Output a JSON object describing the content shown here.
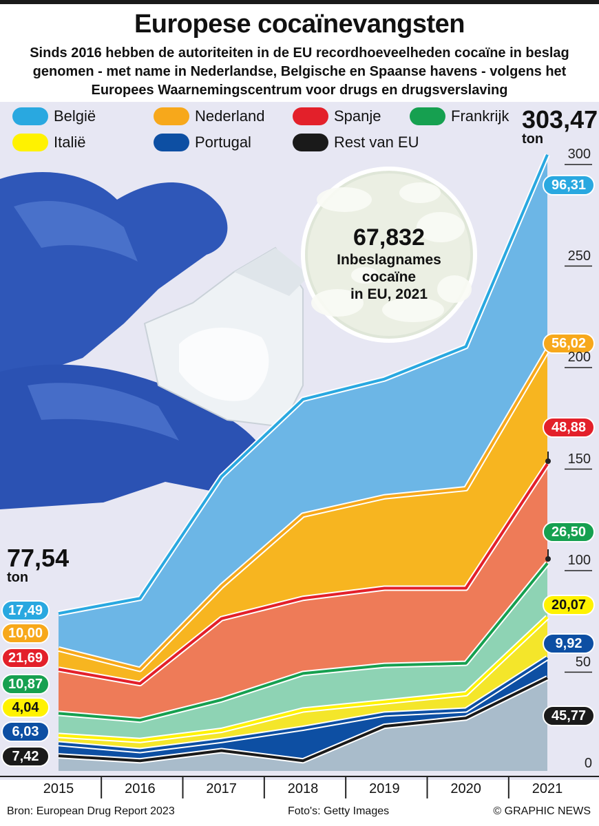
{
  "title": "Europese cocaïnevangsten",
  "subtitle": "Sinds 2016 hebben de autoriteiten in de EU recordhoeveelheden cocaïne in beslag genomen - met name in Nederlandse, Belgische en Spaanse havens - volgens het Europees Waarnemingscentrum voor drugs en drugsverslaving",
  "legend": [
    {
      "label": "België",
      "color": "#29a8e0"
    },
    {
      "label": "Nederland",
      "color": "#f7a81b"
    },
    {
      "label": "Spanje",
      "color": "#e3202a"
    },
    {
      "label": "Frankrijk",
      "color": "#16a050"
    },
    {
      "label": "Italië",
      "color": "#fff200"
    },
    {
      "label": "Portugal",
      "color": "#0d4fa3"
    },
    {
      "label": "Rest van EU",
      "color": "#1a1a1a"
    }
  ],
  "start_total": {
    "value": "77,54",
    "unit": "ton"
  },
  "end_total": {
    "value": "303,47",
    "unit": "ton"
  },
  "start_labels": [
    "17,49",
    "10,00",
    "21,69",
    "10,87",
    "4,04",
    "6,03",
    "7,42"
  ],
  "end_labels": [
    "96,31",
    "56,02",
    "48,88",
    "26,50",
    "20,07",
    "9,92",
    "45,77"
  ],
  "seizures": {
    "value": "67,832",
    "line1": "Inbeslagnames",
    "line2": "cocaïne",
    "line3": "in EU, 2021"
  },
  "footer": {
    "source": "Bron: European Drug Report 2023",
    "photo": "Foto's: Getty Images",
    "credit": "© GRAPHIC NEWS"
  },
  "chart_data": {
    "type": "area",
    "stacked": true,
    "x": [
      "2015",
      "2016",
      "2017",
      "2018",
      "2019",
      "2020",
      "2021"
    ],
    "ylim": [
      0,
      300
    ],
    "yticks": [
      0,
      50,
      100,
      150,
      200,
      250,
      300
    ],
    "series": [
      {
        "name": "Rest van EU",
        "color": "#1a1a1a",
        "fill": "#a9bccb",
        "values": [
          7.42,
          5,
          10,
          5,
          22,
          26,
          45.77
        ]
      },
      {
        "name": "Portugal",
        "color": "#0d4fa3",
        "fill": "#0d4fa3",
        "values": [
          6.03,
          5,
          5,
          16,
          6,
          4,
          9.92
        ]
      },
      {
        "name": "Italië",
        "color": "#fff200",
        "fill": "#f4e62a",
        "values": [
          4.04,
          5,
          5,
          9,
          6,
          8,
          20.07
        ]
      },
      {
        "name": "Frankrijk",
        "color": "#16a050",
        "fill": "#8ed3b4",
        "values": [
          10.87,
          10,
          15,
          18,
          18,
          15,
          26.5
        ]
      },
      {
        "name": "Spanje",
        "color": "#e3202a",
        "fill": "#ee7b58",
        "values": [
          21.69,
          18,
          40,
          37,
          38,
          37,
          48.88
        ]
      },
      {
        "name": "Nederland",
        "color": "#f7a81b",
        "fill": "#f7b520",
        "values": [
          10.0,
          7,
          16,
          41,
          45,
          49,
          56.02
        ]
      },
      {
        "name": "België",
        "color": "#29a8e0",
        "fill": "#6cb6e6",
        "values": [
          17.49,
          35,
          54,
          57,
          58,
          70,
          96.31
        ]
      }
    ]
  }
}
